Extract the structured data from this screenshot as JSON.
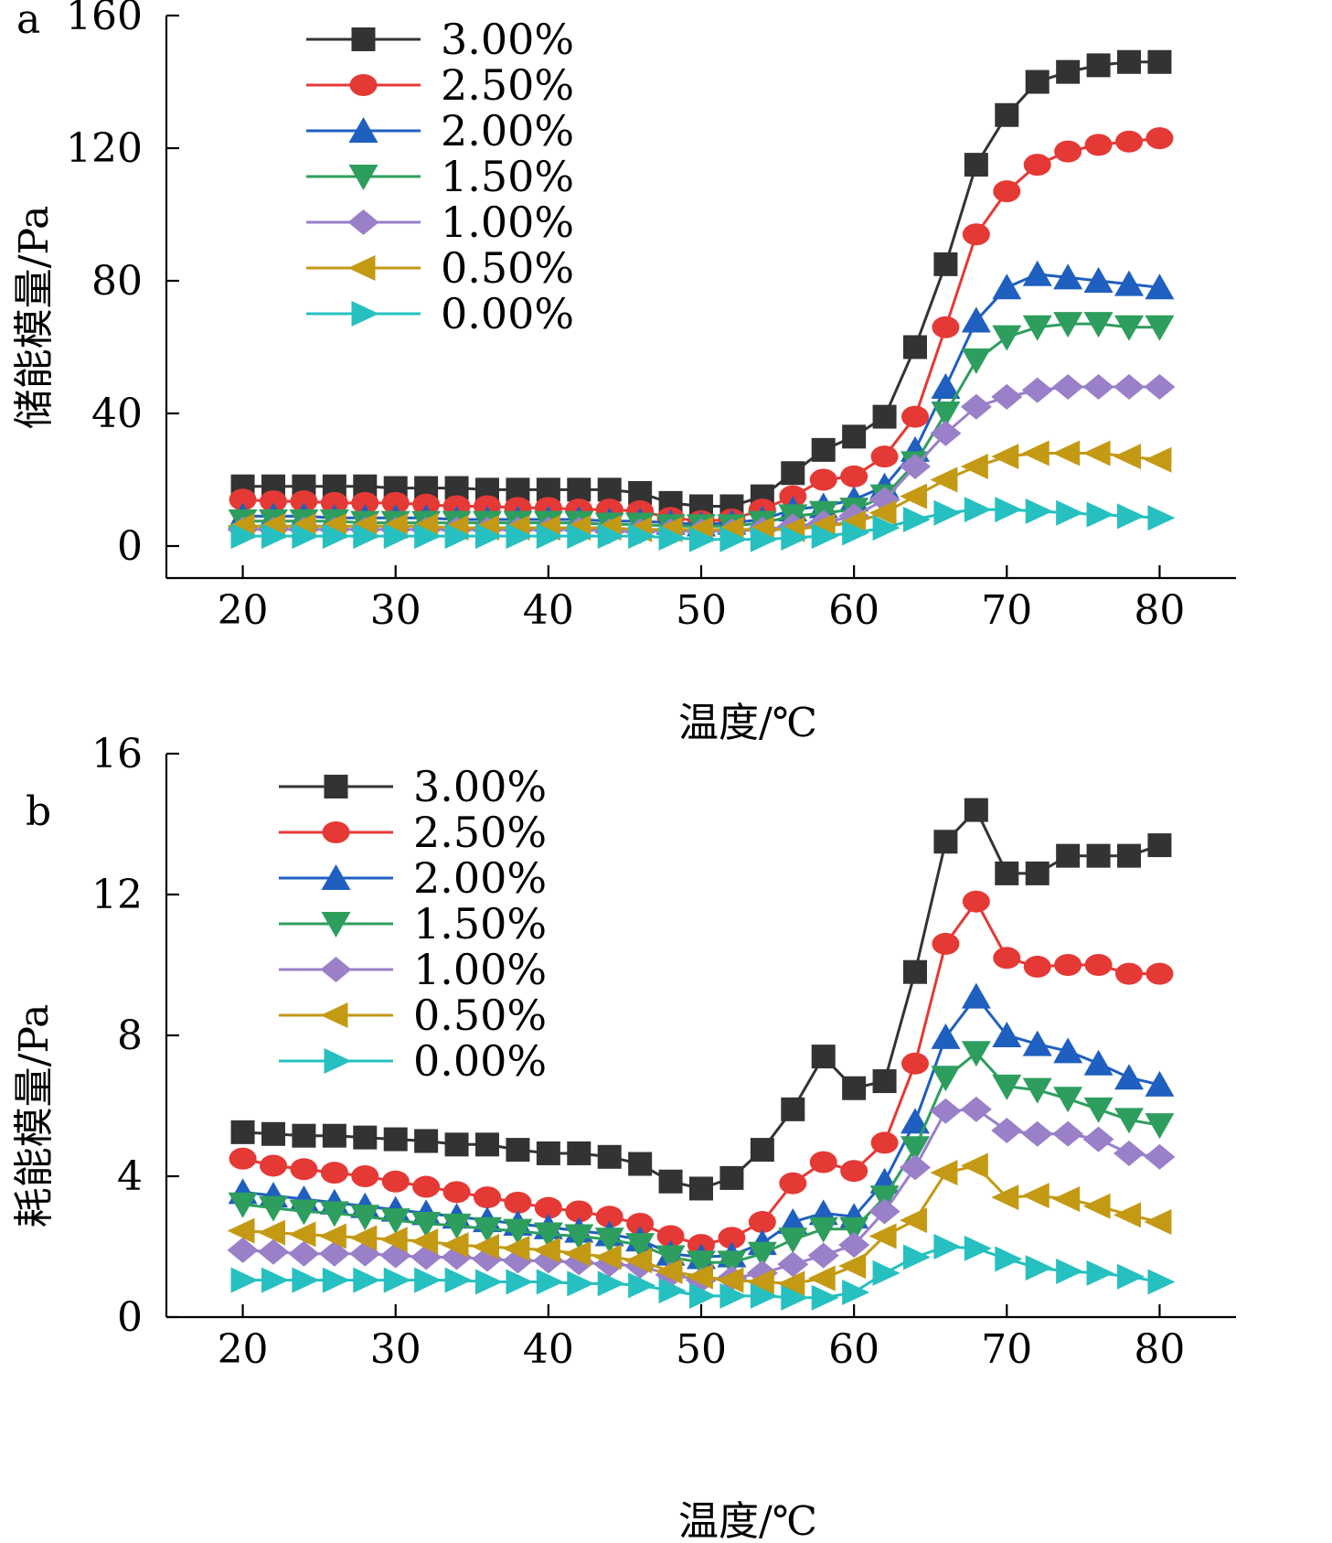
{
  "colors": {
    "3.00%": "#333333",
    "2.50%": "#e53935",
    "2.00%": "#1f5fbf",
    "1.50%": "#2e9e5e",
    "1.00%": "#9a7fc9",
    "0.50%": "#c49a14",
    "0.00%": "#26c0c0"
  },
  "markers": {
    "3.00%": "square",
    "2.50%": "circle",
    "2.00%": "triangle-up",
    "1.50%": "triangle-down",
    "1.00%": "diamond",
    "0.50%": "triangle-left",
    "0.00%": "triangle-right"
  },
  "chart_data": [
    {
      "type": "line",
      "panel_label": "a",
      "xlabel": "温度/℃",
      "ylabel": "储能模量/Pa",
      "xlim": [
        15,
        85
      ],
      "ylim": [
        0,
        160
      ],
      "xticks": [
        20,
        30,
        40,
        50,
        60,
        70,
        80
      ],
      "yticks": [
        0,
        40,
        80,
        120,
        160
      ],
      "legend": "top-left",
      "x": [
        20,
        22,
        24,
        26,
        28,
        30,
        32,
        34,
        36,
        38,
        40,
        42,
        44,
        46,
        48,
        50,
        52,
        54,
        56,
        58,
        60,
        62,
        64,
        66,
        68,
        70,
        72,
        74,
        76,
        78,
        80
      ],
      "series": [
        {
          "name": "3.00%",
          "values": [
            18,
            18,
            18,
            18,
            18,
            17.5,
            17.5,
            17.5,
            17,
            17,
            17,
            17,
            17,
            16,
            13,
            12,
            12,
            15,
            22,
            29,
            33,
            39,
            60,
            85,
            115,
            130,
            140,
            143,
            145,
            146,
            146
          ]
        },
        {
          "name": "2.50%",
          "values": [
            14,
            13.5,
            13.5,
            13,
            13,
            13,
            12.5,
            12,
            12,
            11.5,
            11.5,
            11,
            11,
            10.5,
            8.5,
            7.5,
            8,
            11,
            15,
            20,
            21,
            27,
            39,
            66,
            94,
            107,
            115,
            119,
            121,
            122,
            123
          ]
        },
        {
          "name": "2.00%",
          "values": [
            9,
            9,
            9,
            8.5,
            8.5,
            8.5,
            8.5,
            8,
            8,
            8,
            8,
            8,
            7.5,
            7.5,
            7,
            6.5,
            7,
            8,
            11,
            12,
            14,
            18,
            29,
            48,
            68,
            78,
            82,
            81,
            80,
            79,
            78
          ]
        },
        {
          "name": "1.50%",
          "values": [
            7.5,
            7.5,
            7.5,
            7.5,
            7,
            7,
            7,
            7,
            7,
            7,
            7,
            7,
            6.5,
            6.5,
            6,
            6,
            6,
            7,
            9,
            10,
            11,
            15,
            25,
            40,
            56,
            63,
            66,
            67,
            67,
            66,
            66
          ]
        },
        {
          "name": "1.00%",
          "values": [
            5,
            5,
            5,
            5,
            5,
            5,
            5,
            5,
            5,
            5,
            5,
            5,
            4.5,
            4.5,
            4.5,
            4.5,
            4.5,
            5,
            6,
            7,
            9,
            14,
            24,
            34,
            42,
            45,
            47,
            48,
            48,
            48,
            48
          ]
        },
        {
          "name": "0.50%",
          "values": [
            6,
            6,
            6,
            6,
            6,
            6,
            6,
            5.5,
            5.5,
            5.5,
            5.5,
            5.5,
            5.5,
            5,
            5,
            5,
            5,
            5,
            5,
            6,
            7,
            10,
            15,
            20,
            24,
            27,
            28,
            28,
            28,
            27,
            26
          ]
        },
        {
          "name": "0.00%",
          "values": [
            3,
            3,
            3,
            3,
            3,
            3,
            3,
            3,
            3,
            3,
            3,
            3,
            3,
            3,
            2.5,
            2,
            2,
            2,
            2.5,
            3,
            4,
            5.5,
            8,
            10,
            11,
            11,
            10.5,
            10,
            9.5,
            9,
            8.5
          ]
        }
      ]
    },
    {
      "type": "line",
      "panel_label": "b",
      "xlabel": "温度/℃",
      "ylabel": "耗能模量/Pa",
      "xlim": [
        15,
        85
      ],
      "ylim": [
        0,
        16
      ],
      "xticks": [
        20,
        30,
        40,
        50,
        60,
        70,
        80
      ],
      "yticks": [
        0,
        4,
        8,
        12,
        16
      ],
      "legend": "top-left",
      "x": [
        20,
        22,
        24,
        26,
        28,
        30,
        32,
        34,
        36,
        38,
        40,
        42,
        44,
        46,
        48,
        50,
        52,
        54,
        56,
        58,
        60,
        62,
        64,
        66,
        68,
        70,
        72,
        74,
        76,
        78,
        80
      ],
      "series": [
        {
          "name": "3.00%",
          "values": [
            5.25,
            5.2,
            5.15,
            5.15,
            5.1,
            5.05,
            5.0,
            4.9,
            4.9,
            4.75,
            4.65,
            4.65,
            4.55,
            4.35,
            3.85,
            3.65,
            3.95,
            4.75,
            5.9,
            7.4,
            6.5,
            6.7,
            9.8,
            13.5,
            14.4,
            12.6,
            12.6,
            13.1,
            13.1,
            13.1,
            13.4
          ]
        },
        {
          "name": "2.50%",
          "values": [
            4.5,
            4.3,
            4.2,
            4.1,
            4.0,
            3.85,
            3.7,
            3.55,
            3.4,
            3.25,
            3.1,
            3.0,
            2.85,
            2.65,
            2.3,
            2.05,
            2.25,
            2.7,
            3.8,
            4.4,
            4.15,
            4.95,
            7.2,
            10.6,
            11.8,
            10.2,
            9.95,
            10.0,
            10.0,
            9.75,
            9.75
          ]
        },
        {
          "name": "2.00%",
          "values": [
            3.55,
            3.45,
            3.35,
            3.25,
            3.15,
            3.05,
            2.95,
            2.85,
            2.75,
            2.65,
            2.55,
            2.45,
            2.35,
            2.2,
            1.8,
            1.7,
            1.75,
            2.1,
            2.7,
            2.95,
            2.85,
            3.85,
            5.55,
            7.95,
            9.1,
            8.0,
            7.75,
            7.55,
            7.2,
            6.8,
            6.6
          ]
        },
        {
          "name": "1.50%",
          "values": [
            3.2,
            3.1,
            3.0,
            2.95,
            2.85,
            2.75,
            2.65,
            2.6,
            2.5,
            2.45,
            2.35,
            2.3,
            2.2,
            2.05,
            1.7,
            1.55,
            1.55,
            1.8,
            2.2,
            2.5,
            2.5,
            3.4,
            4.8,
            6.8,
            7.5,
            6.55,
            6.45,
            6.2,
            5.9,
            5.6,
            5.45
          ]
        },
        {
          "name": "1.00%",
          "values": [
            1.9,
            1.85,
            1.8,
            1.8,
            1.8,
            1.75,
            1.7,
            1.7,
            1.65,
            1.6,
            1.6,
            1.55,
            1.5,
            1.45,
            1.2,
            1.05,
            1.1,
            1.25,
            1.5,
            1.75,
            2.05,
            3.0,
            4.25,
            5.85,
            5.9,
            5.3,
            5.2,
            5.2,
            5.05,
            4.65,
            4.55
          ]
        },
        {
          "name": "0.50%",
          "values": [
            2.45,
            2.4,
            2.35,
            2.3,
            2.25,
            2.2,
            2.15,
            2.05,
            2.0,
            1.95,
            1.9,
            1.8,
            1.7,
            1.6,
            1.3,
            1.15,
            1.05,
            1.0,
            0.95,
            1.1,
            1.45,
            2.3,
            2.75,
            4.1,
            4.3,
            3.4,
            3.45,
            3.35,
            3.15,
            2.9,
            2.7
          ]
        },
        {
          "name": "0.00%",
          "values": [
            1.05,
            1.05,
            1.05,
            1.05,
            1.05,
            1.05,
            1.05,
            1.05,
            1.0,
            1.0,
            1.0,
            0.95,
            0.95,
            0.9,
            0.75,
            0.6,
            0.6,
            0.6,
            0.55,
            0.55,
            0.7,
            1.25,
            1.7,
            2.0,
            1.95,
            1.65,
            1.4,
            1.3,
            1.25,
            1.15,
            1.0
          ]
        }
      ]
    }
  ]
}
